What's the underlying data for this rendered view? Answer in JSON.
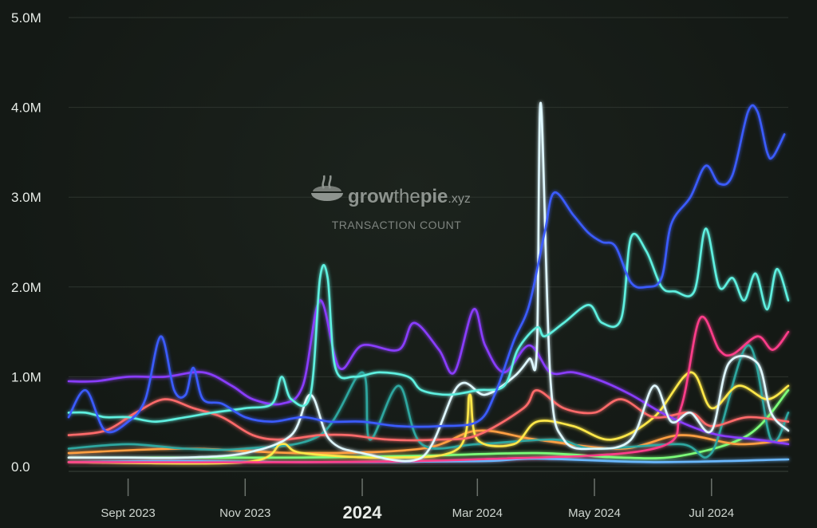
{
  "chart_data": {
    "type": "line",
    "title": "TRANSACTION COUNT",
    "watermark": {
      "brand_pre": "grow",
      "brand_mid": "the",
      "brand_post": "pie",
      "brand_suffix": ".xyz",
      "subtitle": "TRANSACTION COUNT"
    },
    "y_ticks": [
      {
        "value": 0,
        "label": "0.0"
      },
      {
        "value": 1000000,
        "label": "1.0M"
      },
      {
        "value": 2000000,
        "label": "2.0M"
      },
      {
        "value": 3000000,
        "label": "3.0M"
      },
      {
        "value": 4000000,
        "label": "4.0M"
      },
      {
        "value": 5000000,
        "label": "5.0M"
      }
    ],
    "ylim": [
      0,
      5000000
    ],
    "x_range": [
      "2023-08-01",
      "2024-08-10"
    ],
    "x_ticks": [
      {
        "date": "2023-09-01",
        "label": "Sept 2023",
        "major": false
      },
      {
        "date": "2023-11-01",
        "label": "Nov 2023",
        "major": false
      },
      {
        "date": "2024-01-01",
        "label": "2024",
        "major": true
      },
      {
        "date": "2024-03-01",
        "label": "Mar 2024",
        "major": false
      },
      {
        "date": "2024-05-01",
        "label": "May 2024",
        "major": false
      },
      {
        "date": "2024-07-01",
        "label": "Jul 2024",
        "major": false
      }
    ],
    "series": [
      {
        "name": "series-blue",
        "color": "#3b5bff",
        "points": [
          [
            "2023-08-01",
            0.55
          ],
          [
            "2023-08-10",
            0.85
          ],
          [
            "2023-08-20",
            0.4
          ],
          [
            "2023-09-01",
            0.5
          ],
          [
            "2023-09-10",
            0.75
          ],
          [
            "2023-09-18",
            1.45
          ],
          [
            "2023-09-25",
            0.85
          ],
          [
            "2023-10-01",
            0.8
          ],
          [
            "2023-10-05",
            1.1
          ],
          [
            "2023-10-10",
            0.75
          ],
          [
            "2023-10-20",
            0.7
          ],
          [
            "2023-11-01",
            0.55
          ],
          [
            "2023-11-15",
            0.5
          ],
          [
            "2023-12-01",
            0.55
          ],
          [
            "2023-12-15",
            0.5
          ],
          [
            "2024-01-01",
            0.5
          ],
          [
            "2024-01-20",
            0.45
          ],
          [
            "2024-02-10",
            0.45
          ],
          [
            "2024-03-01",
            0.5
          ],
          [
            "2024-03-10",
            0.8
          ],
          [
            "2024-03-20",
            1.4
          ],
          [
            "2024-03-28",
            1.8
          ],
          [
            "2024-04-05",
            2.6
          ],
          [
            "2024-04-10",
            3.05
          ],
          [
            "2024-04-20",
            2.8
          ],
          [
            "2024-04-28",
            2.6
          ],
          [
            "2024-05-05",
            2.5
          ],
          [
            "2024-05-12",
            2.45
          ],
          [
            "2024-05-20",
            2.05
          ],
          [
            "2024-05-28",
            2.0
          ],
          [
            "2024-06-05",
            2.1
          ],
          [
            "2024-06-10",
            2.7
          ],
          [
            "2024-06-20",
            3.0
          ],
          [
            "2024-06-28",
            3.35
          ],
          [
            "2024-07-05",
            3.15
          ],
          [
            "2024-07-12",
            3.25
          ],
          [
            "2024-07-20",
            3.95
          ],
          [
            "2024-07-25",
            3.95
          ],
          [
            "2024-07-30",
            3.5
          ],
          [
            "2024-08-02",
            3.45
          ],
          [
            "2024-08-08",
            3.7
          ]
        ]
      },
      {
        "name": "series-cyan",
        "color": "#5ef0e0",
        "points": [
          [
            "2023-08-01",
            0.6
          ],
          [
            "2023-08-10",
            0.6
          ],
          [
            "2023-08-20",
            0.55
          ],
          [
            "2023-09-01",
            0.55
          ],
          [
            "2023-09-15",
            0.5
          ],
          [
            "2023-10-01",
            0.55
          ],
          [
            "2023-10-15",
            0.6
          ],
          [
            "2023-11-01",
            0.65
          ],
          [
            "2023-11-15",
            0.7
          ],
          [
            "2023-11-20",
            1.0
          ],
          [
            "2023-11-25",
            0.75
          ],
          [
            "2023-12-05",
            0.8
          ],
          [
            "2023-12-10",
            2.1
          ],
          [
            "2023-12-14",
            2.1
          ],
          [
            "2023-12-18",
            1.1
          ],
          [
            "2023-12-28",
            1.0
          ],
          [
            "2024-01-10",
            1.05
          ],
          [
            "2024-01-25",
            1.0
          ],
          [
            "2024-02-01",
            0.85
          ],
          [
            "2024-02-15",
            0.8
          ],
          [
            "2024-03-01",
            0.85
          ],
          [
            "2024-03-15",
            0.9
          ],
          [
            "2024-03-22",
            1.3
          ],
          [
            "2024-04-01",
            1.55
          ],
          [
            "2024-04-05",
            1.45
          ],
          [
            "2024-04-15",
            1.6
          ],
          [
            "2024-04-28",
            1.8
          ],
          [
            "2024-05-05",
            1.6
          ],
          [
            "2024-05-15",
            1.65
          ],
          [
            "2024-05-20",
            2.55
          ],
          [
            "2024-05-28",
            2.4
          ],
          [
            "2024-06-05",
            2.0
          ],
          [
            "2024-06-12",
            1.95
          ],
          [
            "2024-06-22",
            1.95
          ],
          [
            "2024-06-28",
            2.65
          ],
          [
            "2024-07-05",
            2.0
          ],
          [
            "2024-07-12",
            2.1
          ],
          [
            "2024-07-18",
            1.85
          ],
          [
            "2024-07-24",
            2.15
          ],
          [
            "2024-07-30",
            1.75
          ],
          [
            "2024-08-04",
            2.2
          ],
          [
            "2024-08-10",
            1.85
          ]
        ]
      },
      {
        "name": "series-white",
        "color": "#dff8ff",
        "points": [
          [
            "2023-08-01",
            0.1
          ],
          [
            "2023-09-01",
            0.1
          ],
          [
            "2023-10-01",
            0.1
          ],
          [
            "2023-11-01",
            0.15
          ],
          [
            "2023-11-25",
            0.35
          ],
          [
            "2023-12-05",
            0.8
          ],
          [
            "2023-12-15",
            0.3
          ],
          [
            "2024-01-01",
            0.15
          ],
          [
            "2024-02-01",
            0.1
          ],
          [
            "2024-02-20",
            0.9
          ],
          [
            "2024-03-05",
            0.8
          ],
          [
            "2024-03-20",
            1.0
          ],
          [
            "2024-03-28",
            1.2
          ],
          [
            "2024-04-01",
            1.3
          ],
          [
            "2024-04-03",
            4.05
          ],
          [
            "2024-04-08",
            1.0
          ],
          [
            "2024-04-15",
            0.3
          ],
          [
            "2024-05-01",
            0.2
          ],
          [
            "2024-05-20",
            0.3
          ],
          [
            "2024-06-01",
            0.9
          ],
          [
            "2024-06-10",
            0.5
          ],
          [
            "2024-06-20",
            0.6
          ],
          [
            "2024-07-01",
            0.4
          ],
          [
            "2024-07-10",
            1.15
          ],
          [
            "2024-07-25",
            1.15
          ],
          [
            "2024-08-01",
            0.6
          ],
          [
            "2024-08-10",
            0.4
          ]
        ]
      },
      {
        "name": "series-purple",
        "color": "#8a3cff",
        "points": [
          [
            "2023-08-01",
            0.95
          ],
          [
            "2023-08-15",
            0.95
          ],
          [
            "2023-09-01",
            1.0
          ],
          [
            "2023-09-20",
            1.0
          ],
          [
            "2023-10-10",
            1.05
          ],
          [
            "2023-10-25",
            0.9
          ],
          [
            "2023-11-05",
            0.75
          ],
          [
            "2023-11-20",
            0.7
          ],
          [
            "2023-12-01",
            0.9
          ],
          [
            "2023-12-10",
            1.85
          ],
          [
            "2023-12-20",
            1.1
          ],
          [
            "2024-01-01",
            1.35
          ],
          [
            "2024-01-20",
            1.3
          ],
          [
            "2024-01-28",
            1.6
          ],
          [
            "2024-02-10",
            1.3
          ],
          [
            "2024-02-18",
            1.05
          ],
          [
            "2024-02-28",
            1.75
          ],
          [
            "2024-03-05",
            1.35
          ],
          [
            "2024-03-15",
            1.05
          ],
          [
            "2024-03-28",
            1.35
          ],
          [
            "2024-04-08",
            1.05
          ],
          [
            "2024-04-20",
            1.05
          ],
          [
            "2024-05-05",
            0.95
          ],
          [
            "2024-05-20",
            0.8
          ],
          [
            "2024-06-05",
            0.6
          ],
          [
            "2024-06-20",
            0.45
          ],
          [
            "2024-07-05",
            0.35
          ],
          [
            "2024-07-25",
            0.3
          ],
          [
            "2024-08-10",
            0.25
          ]
        ]
      },
      {
        "name": "series-salmon",
        "color": "#ff6b6b",
        "points": [
          [
            "2023-08-01",
            0.35
          ],
          [
            "2023-08-20",
            0.4
          ],
          [
            "2023-09-05",
            0.6
          ],
          [
            "2023-09-20",
            0.75
          ],
          [
            "2023-10-05",
            0.65
          ],
          [
            "2023-10-20",
            0.55
          ],
          [
            "2023-11-05",
            0.35
          ],
          [
            "2023-11-20",
            0.3
          ],
          [
            "2023-12-10",
            0.35
          ],
          [
            "2023-12-25",
            0.35
          ],
          [
            "2024-01-15",
            0.3
          ],
          [
            "2024-02-10",
            0.3
          ],
          [
            "2024-03-01",
            0.35
          ],
          [
            "2024-03-25",
            0.65
          ],
          [
            "2024-04-01",
            0.85
          ],
          [
            "2024-04-15",
            0.65
          ],
          [
            "2024-05-01",
            0.6
          ],
          [
            "2024-05-15",
            0.75
          ],
          [
            "2024-06-01",
            0.55
          ],
          [
            "2024-06-20",
            0.6
          ],
          [
            "2024-07-01",
            0.45
          ],
          [
            "2024-07-20",
            0.55
          ],
          [
            "2024-08-10",
            0.5
          ]
        ]
      },
      {
        "name": "series-pink",
        "color": "#ff3d8a",
        "points": [
          [
            "2023-08-01",
            0.05
          ],
          [
            "2023-12-01",
            0.05
          ],
          [
            "2024-03-01",
            0.08
          ],
          [
            "2024-06-01",
            0.2
          ],
          [
            "2024-06-15",
            0.65
          ],
          [
            "2024-06-25",
            1.65
          ],
          [
            "2024-07-05",
            1.3
          ],
          [
            "2024-07-12",
            1.25
          ],
          [
            "2024-07-25",
            1.45
          ],
          [
            "2024-08-02",
            1.3
          ],
          [
            "2024-08-10",
            1.5
          ]
        ]
      },
      {
        "name": "series-yellow",
        "color": "#ffe84a",
        "points": [
          [
            "2023-08-01",
            0.05
          ],
          [
            "2023-11-01",
            0.05
          ],
          [
            "2023-11-20",
            0.25
          ],
          [
            "2023-12-01",
            0.15
          ],
          [
            "2024-01-15",
            0.1
          ],
          [
            "2024-02-20",
            0.2
          ],
          [
            "2024-02-26",
            0.8
          ],
          [
            "2024-03-01",
            0.3
          ],
          [
            "2024-03-20",
            0.25
          ],
          [
            "2024-04-01",
            0.5
          ],
          [
            "2024-04-20",
            0.45
          ],
          [
            "2024-05-10",
            0.3
          ],
          [
            "2024-06-01",
            0.55
          ],
          [
            "2024-06-20",
            1.05
          ],
          [
            "2024-07-01",
            0.65
          ],
          [
            "2024-07-15",
            0.9
          ],
          [
            "2024-07-30",
            0.75
          ],
          [
            "2024-08-10",
            0.9
          ]
        ]
      },
      {
        "name": "series-teal",
        "color": "#2fa7a0",
        "points": [
          [
            "2023-08-01",
            0.2
          ],
          [
            "2023-09-01",
            0.25
          ],
          [
            "2023-10-01",
            0.2
          ],
          [
            "2023-11-01",
            0.2
          ],
          [
            "2023-12-10",
            0.35
          ],
          [
            "2024-01-01",
            1.05
          ],
          [
            "2024-01-05",
            0.3
          ],
          [
            "2024-01-20",
            0.9
          ],
          [
            "2024-02-01",
            0.25
          ],
          [
            "2024-03-01",
            0.25
          ],
          [
            "2024-04-10",
            0.3
          ],
          [
            "2024-05-01",
            0.2
          ],
          [
            "2024-06-15",
            0.25
          ],
          [
            "2024-07-01",
            0.15
          ],
          [
            "2024-07-20",
            1.35
          ],
          [
            "2024-08-01",
            0.3
          ],
          [
            "2024-08-10",
            0.6
          ]
        ]
      },
      {
        "name": "series-orange",
        "color": "#ff9f43",
        "points": [
          [
            "2023-08-01",
            0.15
          ],
          [
            "2023-10-01",
            0.2
          ],
          [
            "2023-12-01",
            0.15
          ],
          [
            "2024-02-01",
            0.2
          ],
          [
            "2024-03-01",
            0.4
          ],
          [
            "2024-04-01",
            0.3
          ],
          [
            "2024-05-15",
            0.2
          ],
          [
            "2024-06-15",
            0.35
          ],
          [
            "2024-07-15",
            0.25
          ],
          [
            "2024-08-10",
            0.3
          ]
        ]
      },
      {
        "name": "series-lime",
        "color": "#7dff7a",
        "points": [
          [
            "2023-08-01",
            0.1
          ],
          [
            "2023-10-01",
            0.1
          ],
          [
            "2023-12-01",
            0.1
          ],
          [
            "2024-02-01",
            0.12
          ],
          [
            "2024-04-01",
            0.15
          ],
          [
            "2024-05-15",
            0.1
          ],
          [
            "2024-06-15",
            0.12
          ],
          [
            "2024-07-20",
            0.35
          ],
          [
            "2024-08-10",
            0.85
          ]
        ]
      },
      {
        "name": "series-lightblue",
        "color": "#6ab8ff",
        "points": [
          [
            "2023-08-01",
            0.05
          ],
          [
            "2023-10-01",
            0.06
          ],
          [
            "2023-12-01",
            0.05
          ],
          [
            "2024-03-01",
            0.06
          ],
          [
            "2024-04-01",
            0.09
          ],
          [
            "2024-06-01",
            0.05
          ],
          [
            "2024-08-10",
            0.08
          ]
        ]
      }
    ]
  }
}
